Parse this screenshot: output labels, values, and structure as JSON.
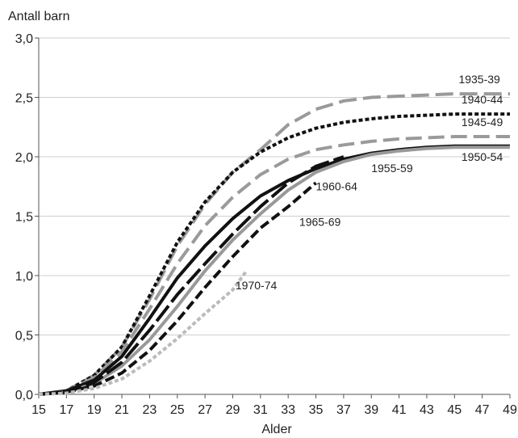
{
  "chart_data": {
    "type": "line",
    "xlabel": "Alder",
    "ylabel": "Antall barn",
    "xlim": [
      15,
      49
    ],
    "ylim": [
      0,
      3
    ],
    "x_ticks": [
      "15",
      "17",
      "19",
      "21",
      "23",
      "25",
      "27",
      "29",
      "31",
      "33",
      "35",
      "37",
      "39",
      "41",
      "43",
      "45",
      "47",
      "49"
    ],
    "y_ticks": [
      "0,0",
      "0,5",
      "1,0",
      "1,5",
      "2,0",
      "2,5",
      "3,0"
    ],
    "grid": "horizontal",
    "series": [
      {
        "name": "1935-39",
        "color": "#9a9a9a",
        "dash": "22 8",
        "x": [
          15,
          17,
          19,
          21,
          23,
          25,
          27,
          29,
          31,
          33,
          35,
          37,
          39,
          41,
          43,
          45,
          47,
          49
        ],
        "values": [
          0.0,
          0.03,
          0.16,
          0.4,
          0.8,
          1.25,
          1.6,
          1.87,
          2.06,
          2.27,
          2.4,
          2.47,
          2.5,
          2.51,
          2.52,
          2.53,
          2.53,
          2.53
        ]
      },
      {
        "name": "1940-44",
        "color": "#111111",
        "dash": "5 3",
        "x": [
          15,
          17,
          19,
          21,
          23,
          25,
          27,
          29,
          31,
          33,
          35,
          37,
          39,
          41,
          43,
          45,
          47,
          49
        ],
        "values": [
          0.0,
          0.03,
          0.16,
          0.4,
          0.83,
          1.28,
          1.62,
          1.87,
          2.04,
          2.16,
          2.24,
          2.29,
          2.32,
          2.34,
          2.35,
          2.36,
          2.36,
          2.36
        ]
      },
      {
        "name": "1945-49",
        "color": "#9a9a9a",
        "dash": "20 8",
        "x": [
          15,
          17,
          19,
          21,
          23,
          25,
          27,
          29,
          31,
          33,
          35,
          37,
          39,
          41,
          43,
          45,
          47,
          49
        ],
        "values": [
          0.0,
          0.03,
          0.14,
          0.36,
          0.72,
          1.1,
          1.42,
          1.66,
          1.85,
          1.98,
          2.06,
          2.1,
          2.13,
          2.15,
          2.16,
          2.17,
          2.17,
          2.17
        ]
      },
      {
        "name": "1950-54",
        "color": "#111111",
        "dash": "none",
        "x": [
          15,
          17,
          19,
          21,
          23,
          25,
          27,
          29,
          31,
          33,
          35,
          37,
          39,
          41,
          43,
          45,
          47,
          49
        ],
        "values": [
          0.0,
          0.03,
          0.12,
          0.32,
          0.64,
          0.98,
          1.25,
          1.48,
          1.67,
          1.8,
          1.9,
          1.98,
          2.03,
          2.06,
          2.08,
          2.09,
          2.09,
          2.09
        ]
      },
      {
        "name": "1955-59",
        "color": "#999999",
        "dash": "none",
        "x": [
          15,
          17,
          19,
          21,
          23,
          25,
          27,
          29,
          31,
          33,
          35,
          37,
          39,
          41,
          43,
          45,
          47,
          49
        ],
        "values": [
          0.0,
          0.02,
          0.09,
          0.24,
          0.46,
          0.74,
          1.04,
          1.3,
          1.52,
          1.72,
          1.87,
          1.96,
          2.02,
          2.05,
          2.07,
          2.08,
          2.08,
          2.08
        ]
      },
      {
        "name": "1960-64",
        "color": "#111111",
        "dash": "24 6",
        "x": [
          15,
          17,
          19,
          21,
          23,
          25,
          27,
          29,
          31,
          33,
          35,
          37
        ],
        "values": [
          0.0,
          0.02,
          0.1,
          0.27,
          0.54,
          0.84,
          1.1,
          1.35,
          1.58,
          1.78,
          1.92,
          2.0
        ]
      },
      {
        "name": "1965-69",
        "color": "#111111",
        "dash": "12 5",
        "x": [
          15,
          17,
          19,
          21,
          23,
          25,
          27,
          29,
          31,
          33,
          35
        ],
        "values": [
          0.0,
          0.02,
          0.07,
          0.18,
          0.37,
          0.62,
          0.9,
          1.16,
          1.4,
          1.58,
          1.78
        ]
      },
      {
        "name": "1970-74",
        "color": "#bbbbbb",
        "dash": "5 3",
        "x": [
          15,
          17,
          19,
          21,
          23,
          25,
          27,
          29,
          30
        ],
        "values": [
          0.0,
          0.01,
          0.05,
          0.13,
          0.28,
          0.47,
          0.68,
          0.88,
          1.04
        ]
      }
    ]
  }
}
